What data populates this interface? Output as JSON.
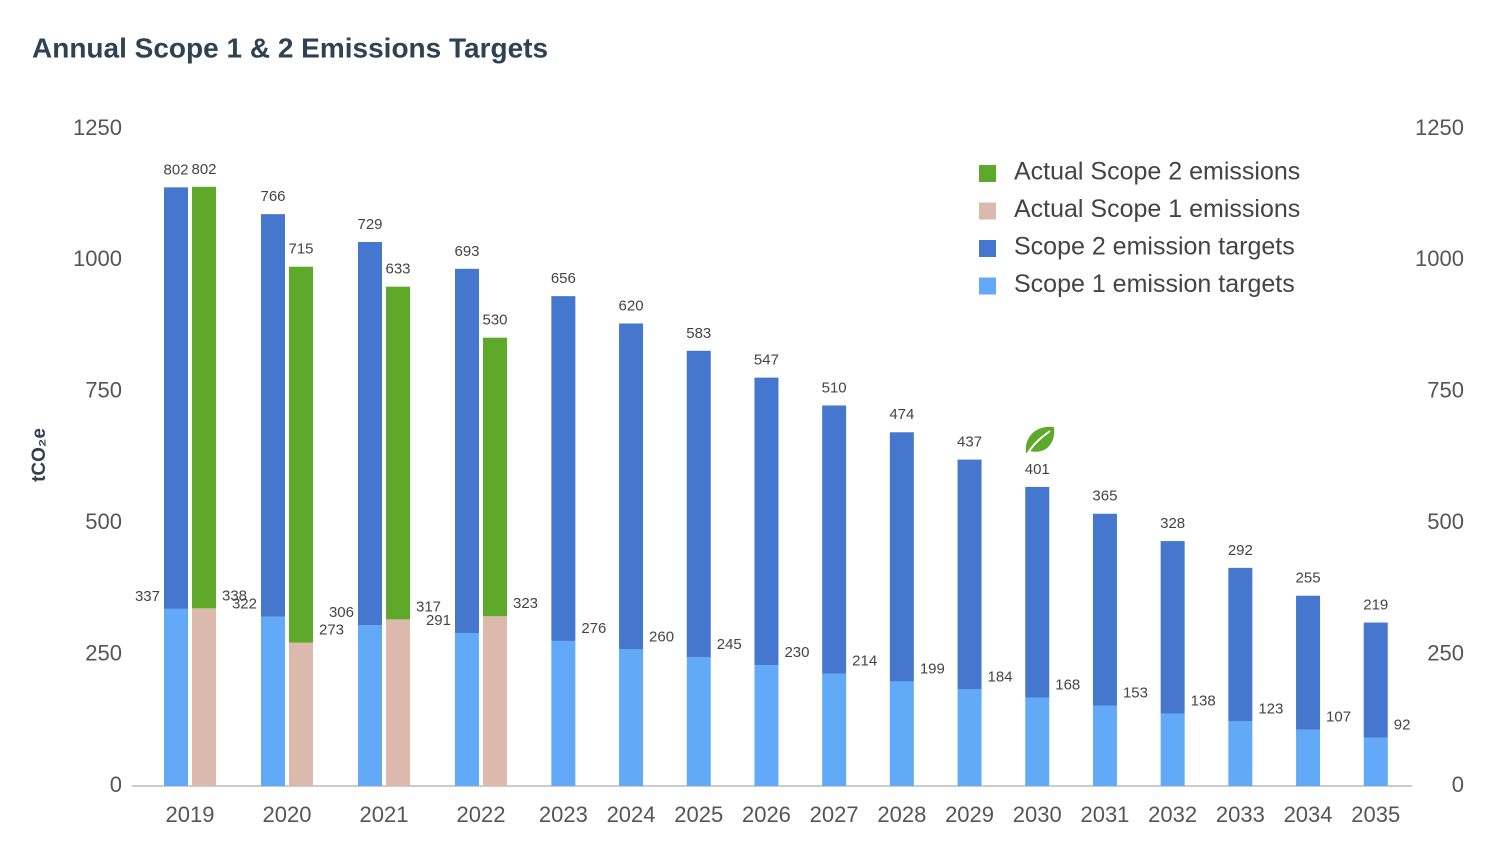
{
  "chart_data": {
    "type": "stacked_bar",
    "title": "Annual Scope 1 & 2 Emissions Targets",
    "y_label": "tCO₂e",
    "categories": [
      "2019",
      "2020",
      "2021",
      "2022",
      "2023",
      "2024",
      "2025",
      "2026",
      "2027",
      "2028",
      "2029",
      "2030",
      "2031",
      "2032",
      "2033",
      "2034",
      "2035"
    ],
    "series": [
      {
        "name": "Actual Scope 2 emissions",
        "color": "#5ea82a",
        "stack": "actual",
        "values": [
          802,
          715,
          633,
          530,
          null,
          null,
          null,
          null,
          null,
          null,
          null,
          null,
          null,
          null,
          null,
          null,
          null
        ]
      },
      {
        "name": "Actual Scope 1 emissions",
        "color": "#dcb9ad",
        "stack": "actual",
        "values": [
          338,
          273,
          317,
          323,
          null,
          null,
          null,
          null,
          null,
          null,
          null,
          null,
          null,
          null,
          null,
          null,
          null
        ]
      },
      {
        "name": "Scope 2 emission targets",
        "color": "#4677cf",
        "stack": "target",
        "values": [
          802,
          766,
          729,
          693,
          656,
          620,
          583,
          547,
          510,
          474,
          437,
          401,
          365,
          328,
          292,
          255,
          219
        ]
      },
      {
        "name": "Scope 1 emission targets",
        "color": "#62a9f8",
        "stack": "target",
        "values": [
          337,
          322,
          306,
          291,
          276,
          260,
          245,
          230,
          214,
          199,
          184,
          168,
          153,
          138,
          123,
          107,
          92
        ]
      }
    ],
    "ylim": [
      0,
      1250
    ],
    "yticks": [
      0,
      250,
      500,
      750,
      1000,
      1250
    ],
    "y2lim": [
      0,
      1250
    ],
    "y2ticks": [
      0,
      250,
      500,
      750,
      1000,
      1250
    ],
    "legend": "top-right",
    "grid": false
  }
}
